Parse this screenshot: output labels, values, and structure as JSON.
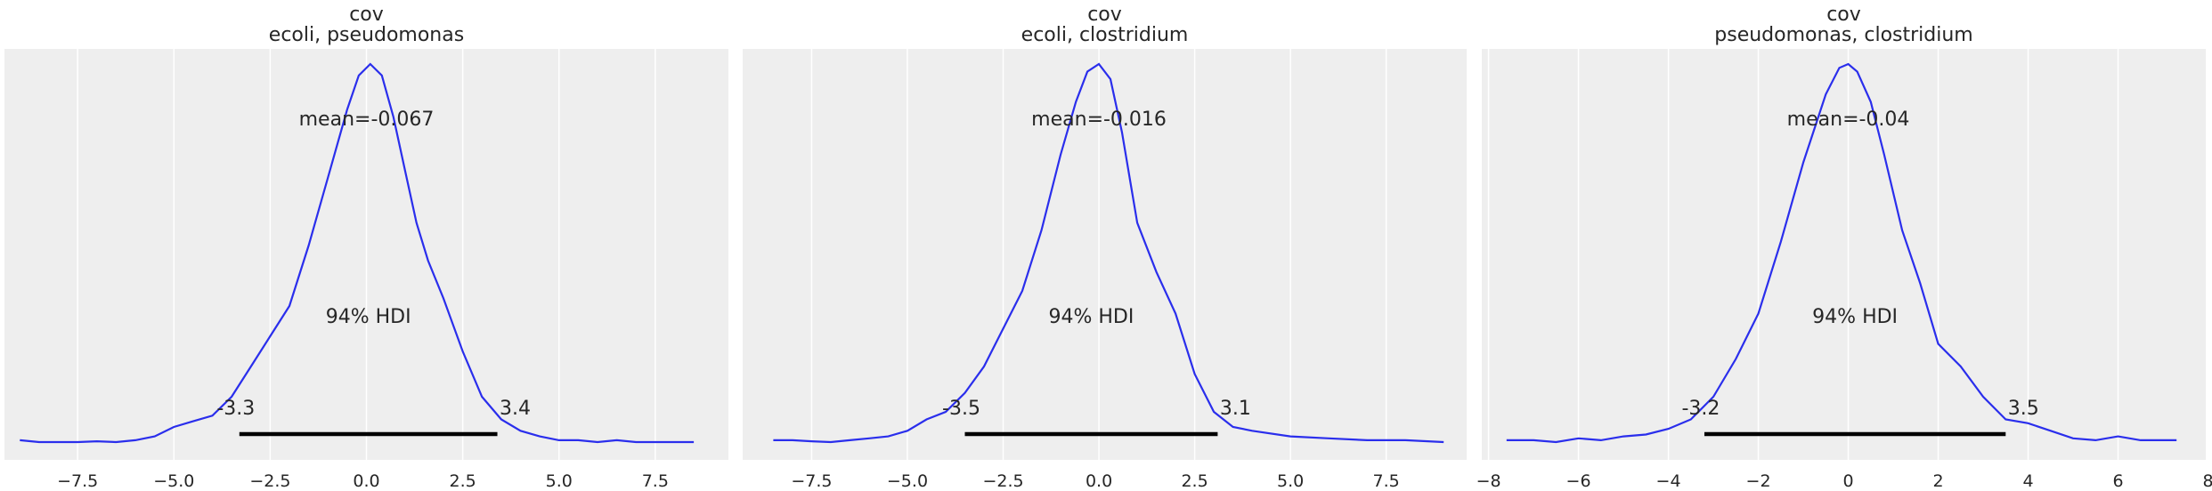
{
  "chart_data": [
    {
      "type": "line",
      "title_line1": "cov",
      "title_line2": "ecoli, pseudomonas",
      "x_ticks": [
        -7.5,
        -5.0,
        -2.5,
        0.0,
        2.5,
        5.0,
        7.5
      ],
      "x_tick_labels": [
        "−7.5",
        "−5.0",
        "−2.5",
        "0.0",
        "2.5",
        "5.0",
        "7.5"
      ],
      "xlim": [
        -9.4,
        9.4
      ],
      "ylim": [
        0,
        1.11
      ],
      "mean_label": "mean=-0.067",
      "hdi_label": "94% HDI",
      "hdi_low": -3.3,
      "hdi_high": 3.4,
      "hdi_low_label": "-3.3",
      "hdi_high_label": "3.4",
      "color": "#2a2eec",
      "series": [
        {
          "name": "kde",
          "x": [
            -9.0,
            -8.5,
            -8.0,
            -7.5,
            -7.0,
            -6.5,
            -6.0,
            -5.5,
            -5.0,
            -4.5,
            -4.0,
            -3.5,
            -3.0,
            -2.5,
            -2.0,
            -1.5,
            -1.0,
            -0.5,
            -0.2,
            0.1,
            0.4,
            0.7,
            1.0,
            1.3,
            1.6,
            2.0,
            2.5,
            3.0,
            3.5,
            4.0,
            4.5,
            5.0,
            5.5,
            6.0,
            6.5,
            7.0,
            7.5,
            8.0,
            8.5
          ],
          "y": [
            0.005,
            0.0,
            0.0,
            0.0,
            0.002,
            0.0,
            0.005,
            0.015,
            0.04,
            0.055,
            0.07,
            0.12,
            0.2,
            0.28,
            0.36,
            0.52,
            0.7,
            0.88,
            0.97,
            1.0,
            0.97,
            0.86,
            0.72,
            0.58,
            0.48,
            0.38,
            0.24,
            0.12,
            0.06,
            0.03,
            0.015,
            0.005,
            0.005,
            0.0,
            0.005,
            0.0,
            0.0,
            0.0,
            0.0
          ]
        }
      ]
    },
    {
      "type": "line",
      "title_line1": "cov",
      "title_line2": "ecoli, clostridium",
      "x_ticks": [
        -7.5,
        -5.0,
        -2.5,
        0.0,
        2.5,
        5.0,
        7.5
      ],
      "x_tick_labels": [
        "−7.5",
        "−5.0",
        "−2.5",
        "0.0",
        "2.5",
        "5.0",
        "7.5"
      ],
      "xlim": [
        -9.3,
        9.6
      ],
      "ylim": [
        0,
        1.11
      ],
      "mean_label": "mean=-0.016",
      "hdi_label": "94% HDI",
      "hdi_low": -3.5,
      "hdi_high": 3.1,
      "hdi_low_label": "-3.5",
      "hdi_high_label": "3.1",
      "color": "#2a2eec",
      "series": [
        {
          "name": "kde",
          "x": [
            -8.5,
            -8.0,
            -7.5,
            -7.0,
            -6.5,
            -6.0,
            -5.5,
            -5.0,
            -4.5,
            -4.0,
            -3.5,
            -3.0,
            -2.5,
            -2.0,
            -1.5,
            -1.0,
            -0.6,
            -0.3,
            0.0,
            0.3,
            0.6,
            1.0,
            1.5,
            2.0,
            2.5,
            3.0,
            3.5,
            4.0,
            5.0,
            6.0,
            7.0,
            8.0,
            9.0
          ],
          "y": [
            0.005,
            0.005,
            0.002,
            0.0,
            0.005,
            0.01,
            0.015,
            0.03,
            0.06,
            0.08,
            0.13,
            0.2,
            0.3,
            0.4,
            0.56,
            0.76,
            0.9,
            0.98,
            1.0,
            0.96,
            0.82,
            0.58,
            0.45,
            0.34,
            0.18,
            0.08,
            0.04,
            0.03,
            0.015,
            0.01,
            0.005,
            0.005,
            0.0
          ]
        }
      ]
    },
    {
      "type": "line",
      "title_line1": "cov",
      "title_line2": "pseudomonas, clostridium",
      "x_ticks": [
        -8,
        -6,
        -4,
        -2,
        0,
        2,
        4,
        6,
        8
      ],
      "x_tick_labels": [
        "−8",
        "−6",
        "−4",
        "−2",
        "0",
        "2",
        "4",
        "6",
        "8"
      ],
      "xlim": [
        -8.15,
        7.95
      ],
      "ylim": [
        0,
        1.11
      ],
      "mean_label": "mean=-0.04",
      "hdi_label": "94% HDI",
      "hdi_low": -3.2,
      "hdi_high": 3.5,
      "hdi_low_label": "-3.2",
      "hdi_high_label": "3.5",
      "color": "#2a2eec",
      "series": [
        {
          "name": "kde",
          "x": [
            -7.6,
            -7.0,
            -6.5,
            -6.0,
            -5.5,
            -5.0,
            -4.5,
            -4.0,
            -3.5,
            -3.0,
            -2.5,
            -2.0,
            -1.5,
            -1.0,
            -0.5,
            -0.2,
            0.0,
            0.2,
            0.5,
            0.8,
            1.2,
            1.6,
            2.0,
            2.5,
            3.0,
            3.5,
            4.0,
            4.5,
            5.0,
            5.5,
            6.0,
            6.5,
            7.0,
            7.3
          ],
          "y": [
            0.005,
            0.005,
            0.0,
            0.01,
            0.005,
            0.015,
            0.02,
            0.035,
            0.06,
            0.12,
            0.22,
            0.34,
            0.53,
            0.74,
            0.92,
            0.99,
            1.0,
            0.98,
            0.9,
            0.76,
            0.56,
            0.42,
            0.26,
            0.2,
            0.12,
            0.06,
            0.05,
            0.03,
            0.01,
            0.005,
            0.015,
            0.005,
            0.005,
            0.005
          ]
        }
      ]
    }
  ]
}
